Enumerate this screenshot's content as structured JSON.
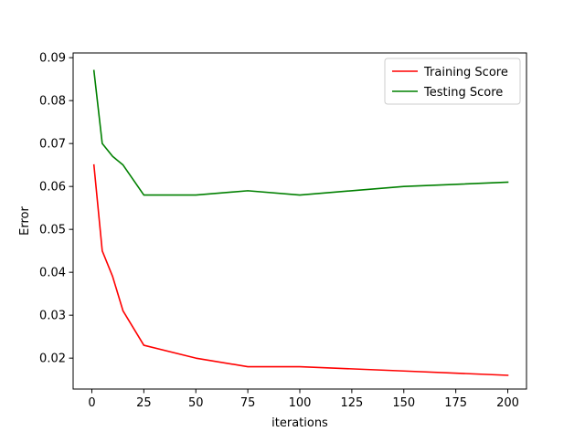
{
  "chart_data": {
    "type": "line",
    "title": "",
    "xlabel": "iterations",
    "ylabel": "Error",
    "xlim": [
      -9,
      209
    ],
    "ylim": [
      0.0128,
      0.0911
    ],
    "x_ticks": [
      0,
      25,
      50,
      75,
      100,
      125,
      150,
      175,
      200
    ],
    "x_tick_labels": [
      "0",
      "25",
      "50",
      "75",
      "100",
      "125",
      "150",
      "175",
      "200"
    ],
    "y_ticks": [
      0.02,
      0.03,
      0.04,
      0.05,
      0.06,
      0.07,
      0.08,
      0.09
    ],
    "y_tick_labels": [
      "0.02",
      "0.03",
      "0.04",
      "0.05",
      "0.06",
      "0.07",
      "0.08",
      "0.09"
    ],
    "grid": false,
    "legend_position": "top-right",
    "series": [
      {
        "name": "Training Score",
        "color": "#ff0000",
        "x": [
          1,
          5,
          10,
          15,
          25,
          50,
          75,
          100,
          150,
          200
        ],
        "y": [
          0.065,
          0.045,
          0.039,
          0.031,
          0.023,
          0.02,
          0.018,
          0.018,
          0.017,
          0.016
        ]
      },
      {
        "name": "Testing Score",
        "color": "#008000",
        "x": [
          1,
          5,
          10,
          15,
          25,
          50,
          75,
          100,
          150,
          200
        ],
        "y": [
          0.087,
          0.07,
          0.067,
          0.065,
          0.058,
          0.058,
          0.059,
          0.058,
          0.06,
          0.061
        ]
      }
    ]
  }
}
